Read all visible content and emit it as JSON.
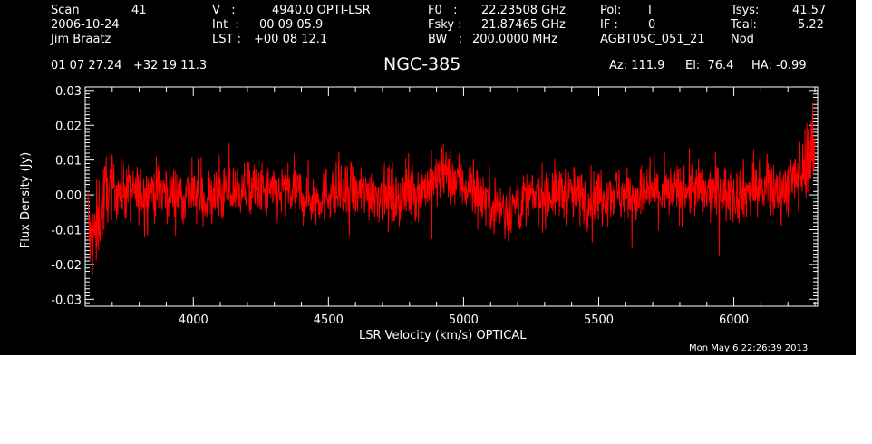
{
  "header": {
    "scan_label": "Scan",
    "scan_value": "41",
    "date": "2006-10-24",
    "observer": "Jim Braatz",
    "v_label": "V   :",
    "v_value": "4940.0 OPTI-LSR",
    "int_label": "Int  :",
    "int_value": "00 09 05.9",
    "lst_label": "LST :",
    "lst_value": "+00 08 12.1",
    "f0_label": "F0   :",
    "f0_value": "22.23508 GHz",
    "fsky_label": "Fsky :",
    "fsky_value": "21.87465 GHz",
    "bw_label": "BW   :",
    "bw_value": "200.0000 MHz",
    "pol_label": "Pol:",
    "pol_value": "I",
    "if_label": "IF :",
    "if_value": "0",
    "project": "AGBT05C_051_21",
    "tsys_label": "Tsys:",
    "tsys_value": "41.57",
    "tcal_label": "Tcal:",
    "tcal_value": "5.22",
    "mode": "Nod",
    "coords": "01 07 27.24   +32 19 11.3",
    "source": "NGC-385",
    "az": "Az: 111.9",
    "el": "El:  76.4",
    "ha": "HA: -0.99"
  },
  "footer": {
    "timestamp": "Mon May  6 22:26:39 2013"
  },
  "chart_data": {
    "type": "line",
    "xlabel": "LSR Velocity (km/s) OPTICAL",
    "ylabel": "Flux Density (Jy)",
    "xlim": [
      3600,
      6310
    ],
    "ylim": [
      -0.032,
      0.031
    ],
    "x_ticks": [
      4000,
      4500,
      5000,
      5500,
      6000
    ],
    "x_tick_labels": [
      "4000",
      "4500",
      "5000",
      "5500",
      "6000"
    ],
    "y_ticks": [
      -0.03,
      -0.02,
      -0.01,
      0.0,
      0.01,
      0.02,
      0.03
    ],
    "y_tick_labels": [
      "-0.03",
      "-0.02",
      "-0.01",
      "0.00",
      "0.01",
      "0.02",
      "0.03"
    ],
    "series": [
      {
        "color": "#ff0000",
        "x": [
          3610,
          3620,
          3640,
          3660,
          3680,
          3700,
          3750,
          3800,
          3850,
          3900,
          3950,
          4000,
          4050,
          4100,
          4150,
          4200,
          4250,
          4300,
          4350,
          4400,
          4450,
          4500,
          4550,
          4600,
          4650,
          4700,
          4750,
          4800,
          4850,
          4900,
          4930,
          4960,
          5000,
          5050,
          5100,
          5150,
          5200,
          5250,
          5300,
          5350,
          5400,
          5450,
          5500,
          5550,
          5600,
          5650,
          5700,
          5750,
          5800,
          5850,
          5900,
          5950,
          6000,
          6050,
          6100,
          6150,
          6200,
          6230,
          6250,
          6270,
          6290,
          6300
        ],
        "y": [
          -0.005,
          -0.015,
          -0.01,
          -0.003,
          0.001,
          0.002,
          0.001,
          0.0,
          0.002,
          0.001,
          0.0,
          0.0,
          -0.001,
          0.0,
          0.001,
          0.002,
          0.001,
          0.0,
          0.001,
          0.0,
          -0.001,
          0.001,
          0.0,
          0.0,
          0.001,
          0.0,
          -0.001,
          0.0,
          0.002,
          0.004,
          0.006,
          0.005,
          0.003,
          0.001,
          -0.002,
          -0.004,
          -0.003,
          -0.001,
          0.0,
          0.001,
          0.0,
          -0.001,
          0.0,
          0.001,
          0.0,
          0.0,
          0.001,
          0.0,
          0.001,
          0.002,
          0.0,
          0.001,
          0.0,
          0.001,
          0.002,
          0.001,
          0.003,
          0.004,
          0.007,
          0.01,
          0.013,
          0.012
        ]
      }
    ]
  }
}
